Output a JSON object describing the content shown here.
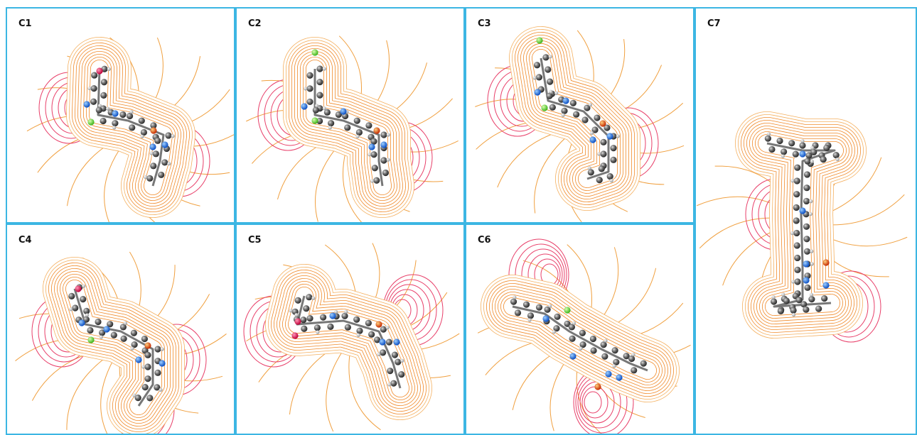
{
  "panels": [
    {
      "label": "C1"
    },
    {
      "label": "C2"
    },
    {
      "label": "C3"
    },
    {
      "label": "C4"
    },
    {
      "label": "C5"
    },
    {
      "label": "C6"
    },
    {
      "label": "C7"
    }
  ]
}
